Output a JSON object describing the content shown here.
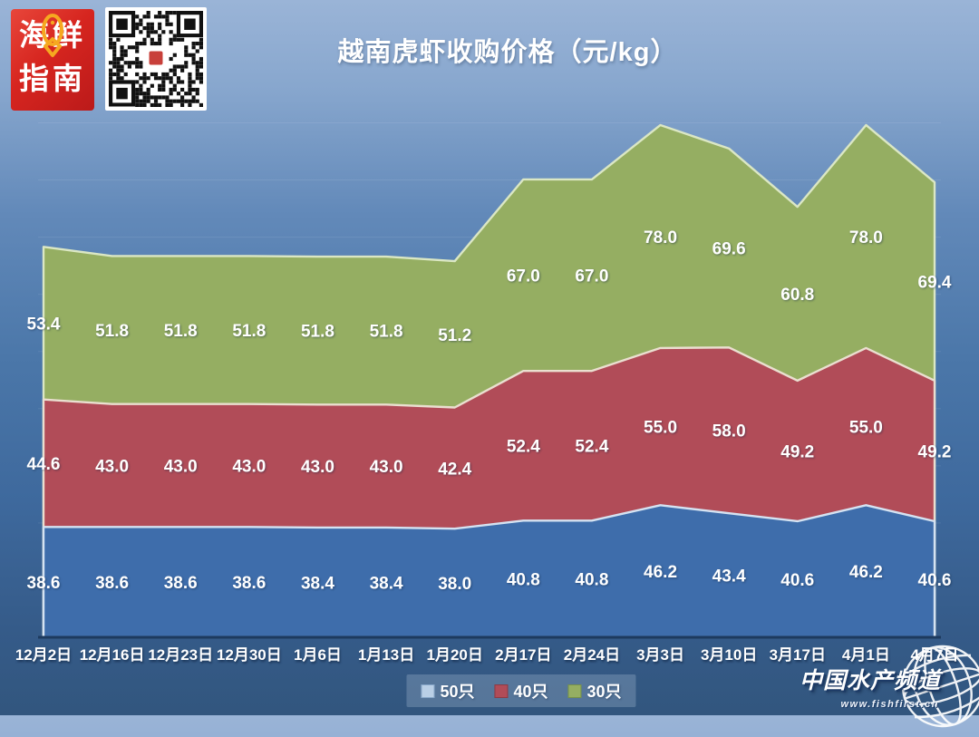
{
  "title": "越南虎虾收购价格（元/kg）",
  "logo": {
    "line1": "海鲜",
    "line2": "指南",
    "brand_red": "#d6251f",
    "fish_color": "#f6a820"
  },
  "icons": {
    "qr": "qr-code",
    "globe": "globe-icon",
    "fish": "fish-icon"
  },
  "legend": [
    {
      "label": "50只",
      "swatch": "#b9cfe6",
      "border": "#87a7c9"
    },
    {
      "label": "40只",
      "swatch": "#b14c58",
      "border": "#8c3a44"
    },
    {
      "label": "30只",
      "swatch": "#95ae62",
      "border": "#75904a"
    }
  ],
  "watermark": {
    "name": "中国水产频道",
    "url": "www.fishfirst.cn"
  },
  "chart_data": {
    "type": "area",
    "stacked": true,
    "title": "越南虎虾收购价格（元/kg）",
    "categories": [
      "12月2日",
      "12月16日",
      "12月23日",
      "12月30日",
      "1月6日",
      "1月13日",
      "1月20日",
      "2月17日",
      "2月24日",
      "3月3日",
      "3月10日",
      "3月17日",
      "4月1日",
      "4月7日"
    ],
    "series": [
      {
        "name": "50只",
        "color": "#3e6dab",
        "edge": "#d5e3f2",
        "values": [
          38.6,
          38.6,
          38.6,
          38.6,
          38.4,
          38.4,
          38.0,
          40.8,
          40.8,
          46.2,
          43.4,
          40.6,
          46.2,
          40.6
        ]
      },
      {
        "name": "40只",
        "color": "#b14c58",
        "edge": "#eadfd0",
        "values": [
          44.6,
          43.0,
          43.0,
          43.0,
          43.0,
          43.0,
          42.4,
          52.4,
          52.4,
          55.0,
          58.0,
          49.2,
          55.0,
          49.2
        ]
      },
      {
        "name": "30只",
        "color": "#95ae62",
        "edge": "#dbe7c4",
        "values": [
          53.4,
          51.8,
          51.8,
          51.8,
          51.8,
          51.8,
          51.2,
          67.0,
          67.0,
          78.0,
          69.6,
          60.8,
          78.0,
          69.4
        ]
      }
    ],
    "xlabel": "",
    "ylabel": "",
    "ylim": [
      0,
      190
    ],
    "grid": "faint horizontal lines every 20 units",
    "y_axis_visible": false,
    "legend_position": "bottom",
    "data_labels": "each point labeled with its own (non-cumulative) value, one decimal"
  }
}
